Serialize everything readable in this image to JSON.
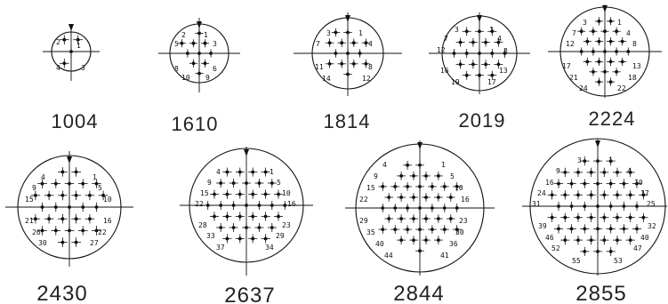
{
  "connectors": [
    {
      "code": "1004",
      "pin_labels": [
        "1",
        "2",
        "3",
        "4"
      ]
    },
    {
      "code": "1610",
      "pin_labels": [
        "1",
        "2",
        "3",
        "5",
        "6",
        "8",
        "9",
        "10"
      ]
    },
    {
      "code": "1814",
      "pin_labels": [
        "1",
        "3",
        "4",
        "7",
        "8",
        "11",
        "12",
        "14"
      ]
    },
    {
      "code": "2019",
      "pin_labels": [
        "1",
        "3",
        "4",
        "7",
        "8",
        "12",
        "13",
        "16",
        "17",
        "19"
      ]
    },
    {
      "code": "2224",
      "pin_labels": [
        "1",
        "3",
        "4",
        "7",
        "8",
        "12",
        "13",
        "17",
        "18",
        "21",
        "22",
        "24"
      ]
    },
    {
      "code": "2430",
      "pin_labels": [
        "1",
        "4",
        "5",
        "9",
        "10",
        "15",
        "16",
        "21",
        "22",
        "26",
        "27",
        "30"
      ]
    },
    {
      "code": "2637",
      "pin_labels": [
        "1",
        "4",
        "5",
        "9",
        "10",
        "15",
        "16",
        "22",
        "23",
        "28",
        "29",
        "33",
        "34",
        "37"
      ]
    },
    {
      "code": "2844",
      "pin_labels": [
        "1",
        "4",
        "5",
        "9",
        "10",
        "15",
        "16",
        "22",
        "23",
        "29",
        "30",
        "35",
        "36",
        "40",
        "41",
        "44"
      ]
    },
    {
      "code": "2855",
      "pin_labels": [
        "1",
        "3",
        "4",
        "9",
        "10",
        "16",
        "17",
        "24",
        "25",
        "31",
        "32",
        "39",
        "40",
        "46",
        "47",
        "52",
        "53",
        "55"
      ]
    }
  ]
}
